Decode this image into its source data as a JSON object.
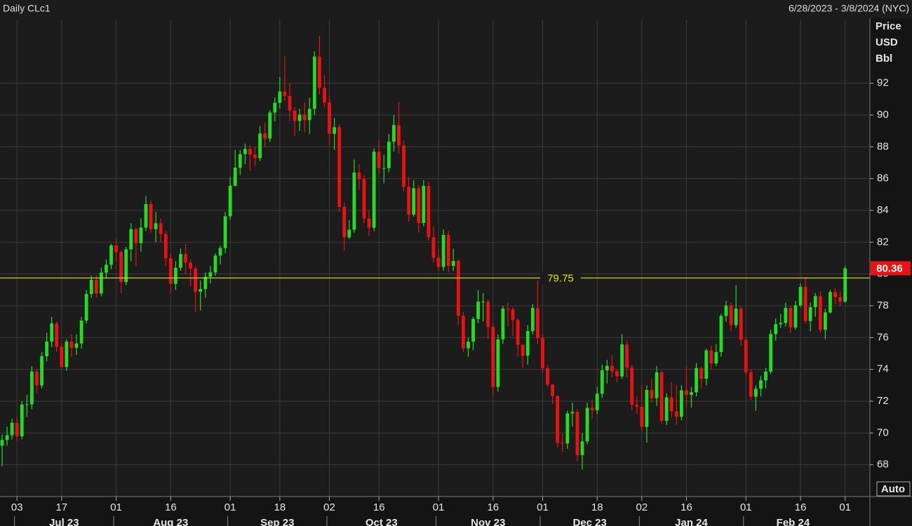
{
  "chart_data": {
    "type": "candlestick",
    "title": "Daily CLc1",
    "subtitle": "6/28/2023 - 3/8/2024 (NYC)",
    "y_axis_label": [
      "Price",
      "USD",
      "Bbl"
    ],
    "button": "Auto",
    "up_color": "#22dd22",
    "down_color": "#ee1111",
    "grid": true,
    "ylim": [
      66,
      96
    ],
    "yticks": [
      68,
      70,
      72,
      74,
      76,
      78,
      80,
      82,
      84,
      86,
      88,
      90,
      92
    ],
    "reference_line": {
      "value": 79.75,
      "color": "#e6e600"
    },
    "x": [
      "2023-06-28",
      "2023-06-29",
      "2023-06-30",
      "2023-07-03",
      "2023-07-05",
      "2023-07-06",
      "2023-07-07",
      "2023-07-10",
      "2023-07-11",
      "2023-07-12",
      "2023-07-13",
      "2023-07-14",
      "2023-07-17",
      "2023-07-18",
      "2023-07-19",
      "2023-07-20",
      "2023-07-21",
      "2023-07-24",
      "2023-07-25",
      "2023-07-26",
      "2023-07-27",
      "2023-07-28",
      "2023-07-31",
      "2023-08-01",
      "2023-08-02",
      "2023-08-03",
      "2023-08-04",
      "2023-08-07",
      "2023-08-08",
      "2023-08-09",
      "2023-08-10",
      "2023-08-11",
      "2023-08-14",
      "2023-08-15",
      "2023-08-16",
      "2023-08-17",
      "2023-08-18",
      "2023-08-21",
      "2023-08-22",
      "2023-08-23",
      "2023-08-24",
      "2023-08-25",
      "2023-08-28",
      "2023-08-29",
      "2023-08-30",
      "2023-08-31",
      "2023-09-01",
      "2023-09-05",
      "2023-09-06",
      "2023-09-07",
      "2023-09-08",
      "2023-09-11",
      "2023-09-12",
      "2023-09-13",
      "2023-09-14",
      "2023-09-15",
      "2023-09-18",
      "2023-09-19",
      "2023-09-20",
      "2023-09-21",
      "2023-09-22",
      "2023-09-25",
      "2023-09-26",
      "2023-09-27",
      "2023-09-28",
      "2023-09-29",
      "2023-10-02",
      "2023-10-03",
      "2023-10-04",
      "2023-10-05",
      "2023-10-06",
      "2023-10-09",
      "2023-10-10",
      "2023-10-11",
      "2023-10-12",
      "2023-10-13",
      "2023-10-16",
      "2023-10-17",
      "2023-10-18",
      "2023-10-19",
      "2023-10-20",
      "2023-10-23",
      "2023-10-24",
      "2023-10-25",
      "2023-10-26",
      "2023-10-27",
      "2023-10-30",
      "2023-10-31",
      "2023-11-01",
      "2023-11-02",
      "2023-11-03",
      "2023-11-06",
      "2023-11-07",
      "2023-11-08",
      "2023-11-09",
      "2023-11-10",
      "2023-11-13",
      "2023-11-14",
      "2023-11-15",
      "2023-11-16",
      "2023-11-17",
      "2023-11-20",
      "2023-11-21",
      "2023-11-22",
      "2023-11-24",
      "2023-11-27",
      "2023-11-28",
      "2023-11-29",
      "2023-11-30",
      "2023-12-01",
      "2023-12-04",
      "2023-12-05",
      "2023-12-06",
      "2023-12-07",
      "2023-12-08",
      "2023-12-11",
      "2023-12-12",
      "2023-12-13",
      "2023-12-14",
      "2023-12-15",
      "2023-12-18",
      "2023-12-19",
      "2023-12-20",
      "2023-12-21",
      "2023-12-22",
      "2023-12-26",
      "2023-12-27",
      "2023-12-28",
      "2023-12-29",
      "2024-01-02",
      "2024-01-03",
      "2024-01-04",
      "2024-01-05",
      "2024-01-08",
      "2024-01-09",
      "2024-01-10",
      "2024-01-11",
      "2024-01-12",
      "2024-01-16",
      "2024-01-17",
      "2024-01-18",
      "2024-01-19",
      "2024-01-22",
      "2024-01-23",
      "2024-01-24",
      "2024-01-25",
      "2024-01-26",
      "2024-01-29",
      "2024-01-30",
      "2024-01-31",
      "2024-02-01",
      "2024-02-02",
      "2024-02-05",
      "2024-02-06",
      "2024-02-07",
      "2024-02-08",
      "2024-02-09",
      "2024-02-12",
      "2024-02-13",
      "2024-02-14",
      "2024-02-15",
      "2024-02-16",
      "2024-02-20",
      "2024-02-21",
      "2024-02-22",
      "2024-02-23",
      "2024-02-26",
      "2024-02-27",
      "2024-02-28",
      "2024-02-29",
      "2024-03-01"
    ],
    "candles": [
      [
        69.2,
        69.9,
        67.9,
        69.56
      ],
      [
        69.56,
        70.4,
        69.2,
        69.86
      ],
      [
        69.86,
        70.9,
        69.6,
        70.64
      ],
      [
        70.64,
        71.0,
        69.5,
        69.79
      ],
      [
        69.79,
        72.0,
        69.6,
        71.79
      ],
      [
        71.79,
        72.4,
        71.0,
        71.8
      ],
      [
        71.8,
        74.2,
        71.5,
        73.86
      ],
      [
        73.86,
        74.0,
        72.5,
        72.99
      ],
      [
        72.99,
        75.1,
        72.8,
        74.83
      ],
      [
        74.83,
        76.3,
        74.5,
        75.75
      ],
      [
        75.75,
        77.3,
        75.4,
        76.89
      ],
      [
        76.89,
        77.0,
        75.1,
        75.42
      ],
      [
        75.42,
        75.6,
        74.0,
        74.15
      ],
      [
        74.15,
        75.9,
        73.9,
        75.75
      ],
      [
        75.75,
        76.2,
        74.8,
        75.35
      ],
      [
        75.35,
        76.2,
        74.9,
        75.63
      ],
      [
        75.63,
        77.3,
        75.3,
        77.07
      ],
      [
        77.07,
        79.0,
        76.9,
        78.74
      ],
      [
        78.74,
        79.9,
        78.5,
        79.63
      ],
      [
        79.63,
        79.9,
        78.5,
        78.78
      ],
      [
        78.78,
        80.4,
        78.6,
        80.09
      ],
      [
        80.09,
        80.9,
        79.7,
        80.58
      ],
      [
        80.58,
        81.9,
        80.3,
        81.8
      ],
      [
        81.8,
        82.2,
        80.8,
        81.37
      ],
      [
        81.37,
        81.5,
        78.8,
        79.49
      ],
      [
        79.49,
        81.7,
        79.3,
        81.55
      ],
      [
        81.55,
        83.2,
        80.8,
        82.82
      ],
      [
        82.82,
        82.9,
        80.5,
        81.94
      ],
      [
        81.94,
        83.5,
        81.4,
        82.92
      ],
      [
        82.92,
        84.9,
        82.7,
        84.4
      ],
      [
        84.4,
        84.6,
        82.6,
        82.82
      ],
      [
        82.82,
        83.9,
        82.0,
        83.19
      ],
      [
        83.19,
        83.5,
        82.0,
        82.51
      ],
      [
        82.51,
        82.7,
        80.5,
        80.99
      ],
      [
        80.99,
        81.3,
        78.8,
        79.38
      ],
      [
        79.38,
        80.8,
        79.0,
        80.39
      ],
      [
        80.39,
        81.6,
        80.2,
        81.25
      ],
      [
        81.25,
        81.9,
        80.0,
        80.72
      ],
      [
        80.72,
        80.9,
        79.2,
        80.35
      ],
      [
        80.35,
        80.5,
        77.6,
        78.89
      ],
      [
        78.89,
        79.6,
        77.7,
        79.05
      ],
      [
        79.05,
        80.1,
        78.5,
        79.83
      ],
      [
        79.83,
        80.5,
        79.4,
        80.1
      ],
      [
        80.1,
        81.3,
        79.9,
        81.16
      ],
      [
        81.16,
        81.8,
        80.6,
        81.63
      ],
      [
        81.63,
        83.9,
        81.3,
        83.63
      ],
      [
        83.63,
        86.1,
        83.4,
        85.55
      ],
      [
        85.55,
        87.8,
        85.5,
        86.69
      ],
      [
        86.69,
        87.8,
        86.2,
        87.54
      ],
      [
        87.54,
        88.2,
        86.9,
        87.87
      ],
      [
        87.87,
        88.1,
        86.5,
        87.51
      ],
      [
        87.51,
        88.0,
        86.8,
        87.29
      ],
      [
        87.29,
        89.3,
        87.1,
        88.84
      ],
      [
        88.84,
        89.5,
        88.0,
        88.52
      ],
      [
        88.52,
        90.3,
        88.3,
        90.16
      ],
      [
        90.16,
        91.1,
        89.6,
        90.77
      ],
      [
        90.77,
        92.4,
        90.4,
        91.48
      ],
      [
        91.48,
        93.7,
        90.9,
        91.2
      ],
      [
        91.2,
        92.0,
        89.6,
        90.28
      ],
      [
        90.28,
        90.5,
        88.7,
        89.63
      ],
      [
        89.63,
        90.4,
        89.0,
        90.03
      ],
      [
        90.03,
        90.8,
        88.9,
        89.68
      ],
      [
        89.68,
        91.1,
        88.8,
        90.39
      ],
      [
        90.39,
        94.0,
        90.0,
        93.68
      ],
      [
        93.68,
        95.0,
        91.3,
        91.71
      ],
      [
        91.71,
        92.5,
        90.5,
        90.79
      ],
      [
        90.79,
        91.2,
        88.1,
        88.82
      ],
      [
        88.82,
        89.8,
        87.8,
        89.23
      ],
      [
        89.23,
        89.4,
        83.9,
        84.22
      ],
      [
        84.22,
        84.5,
        81.5,
        82.31
      ],
      [
        82.31,
        83.4,
        82.2,
        82.79
      ],
      [
        82.79,
        87.2,
        82.6,
        86.38
      ],
      [
        86.38,
        86.9,
        85.3,
        85.97
      ],
      [
        85.97,
        86.2,
        83.2,
        83.49
      ],
      [
        83.49,
        84.0,
        82.4,
        82.91
      ],
      [
        82.91,
        87.9,
        82.7,
        87.69
      ],
      [
        87.69,
        88.4,
        86.3,
        86.66
      ],
      [
        86.66,
        87.5,
        85.7,
        86.66
      ],
      [
        86.66,
        88.8,
        86.4,
        88.32
      ],
      [
        88.32,
        90.0,
        87.7,
        89.37
      ],
      [
        89.37,
        90.8,
        87.6,
        88.08
      ],
      [
        88.08,
        88.4,
        85.2,
        85.49
      ],
      [
        85.49,
        86.1,
        83.3,
        83.74
      ],
      [
        83.74,
        85.9,
        83.6,
        85.39
      ],
      [
        85.39,
        85.6,
        82.6,
        83.21
      ],
      [
        83.21,
        85.9,
        83.0,
        85.54
      ],
      [
        85.54,
        85.8,
        82.1,
        82.31
      ],
      [
        82.31,
        83.0,
        80.7,
        81.02
      ],
      [
        81.02,
        81.6,
        80.2,
        80.44
      ],
      [
        80.44,
        82.8,
        80.2,
        82.46
      ],
      [
        82.46,
        82.7,
        80.1,
        80.51
      ],
      [
        80.51,
        81.6,
        80.2,
        80.82
      ],
      [
        80.82,
        80.9,
        76.8,
        77.37
      ],
      [
        77.37,
        77.6,
        75.1,
        75.33
      ],
      [
        75.33,
        76.0,
        74.8,
        75.74
      ],
      [
        75.74,
        77.3,
        75.2,
        77.17
      ],
      [
        77.17,
        79.0,
        76.9,
        78.26
      ],
      [
        78.26,
        78.8,
        77.0,
        78.26
      ],
      [
        78.26,
        78.4,
        75.9,
        76.66
      ],
      [
        76.66,
        76.9,
        72.4,
        72.9
      ],
      [
        72.9,
        76.2,
        72.6,
        75.89
      ],
      [
        75.89,
        78.0,
        75.6,
        77.83
      ],
      [
        77.83,
        78.2,
        76.7,
        77.77
      ],
      [
        77.77,
        77.9,
        76.1,
        77.1
      ],
      [
        77.1,
        77.2,
        74.8,
        75.54
      ],
      [
        75.54,
        75.6,
        74.1,
        74.86
      ],
      [
        74.86,
        76.8,
        74.3,
        76.41
      ],
      [
        76.41,
        78.1,
        76.2,
        77.86
      ],
      [
        77.86,
        79.6,
        75.6,
        75.96
      ],
      [
        75.96,
        76.2,
        73.8,
        74.07
      ],
      [
        74.07,
        74.3,
        72.9,
        73.04
      ],
      [
        73.04,
        73.1,
        71.8,
        72.32
      ],
      [
        72.32,
        72.4,
        69.1,
        69.38
      ],
      [
        69.38,
        70.0,
        68.8,
        69.34
      ],
      [
        69.34,
        71.4,
        69.0,
        71.23
      ],
      [
        71.23,
        71.9,
        70.4,
        71.32
      ],
      [
        71.32,
        71.5,
        68.2,
        68.61
      ],
      [
        68.61,
        70.0,
        67.7,
        69.47
      ],
      [
        69.47,
        71.9,
        69.3,
        71.58
      ],
      [
        71.58,
        72.1,
        70.9,
        71.43
      ],
      [
        71.43,
        72.9,
        71.2,
        72.47
      ],
      [
        72.47,
        74.3,
        72.2,
        73.94
      ],
      [
        73.94,
        74.6,
        73.1,
        74.22
      ],
      [
        74.22,
        74.9,
        73.5,
        73.89
      ],
      [
        73.89,
        74.0,
        73.2,
        73.56
      ],
      [
        73.56,
        76.2,
        73.4,
        75.57
      ],
      [
        75.57,
        75.8,
        73.5,
        74.11
      ],
      [
        74.11,
        74.3,
        71.4,
        71.77
      ],
      [
        71.77,
        72.3,
        71.2,
        71.65
      ],
      [
        71.65,
        73.0,
        70.1,
        70.38
      ],
      [
        70.38,
        73.0,
        69.4,
        72.7
      ],
      [
        72.7,
        73.4,
        71.9,
        72.19
      ],
      [
        72.19,
        74.2,
        71.7,
        73.81
      ],
      [
        73.81,
        73.9,
        70.6,
        70.77
      ],
      [
        70.77,
        72.5,
        70.5,
        72.24
      ],
      [
        72.24,
        73.2,
        71.0,
        71.37
      ],
      [
        71.37,
        73.0,
        70.5,
        71.02
      ],
      [
        71.02,
        73.0,
        70.8,
        72.68
      ],
      [
        72.68,
        74.2,
        71.6,
        72.4
      ],
      [
        72.4,
        72.9,
        71.6,
        72.56
      ],
      [
        72.56,
        74.4,
        72.3,
        74.08
      ],
      [
        74.08,
        74.2,
        72.8,
        73.41
      ],
      [
        73.41,
        75.3,
        73.0,
        75.19
      ],
      [
        75.19,
        75.5,
        74.0,
        74.37
      ],
      [
        74.37,
        75.6,
        74.2,
        75.09
      ],
      [
        75.09,
        77.5,
        74.8,
        77.36
      ],
      [
        77.36,
        78.3,
        77.0,
        78.01
      ],
      [
        78.01,
        78.2,
        76.4,
        76.78
      ],
      [
        76.78,
        79.3,
        76.6,
        77.82
      ],
      [
        77.82,
        78.0,
        75.5,
        75.85
      ],
      [
        75.85,
        76.0,
        73.6,
        73.82
      ],
      [
        73.82,
        74.0,
        72.1,
        72.28
      ],
      [
        72.28,
        73.0,
        71.4,
        72.78
      ],
      [
        72.78,
        73.6,
        72.3,
        73.31
      ],
      [
        73.31,
        74.1,
        72.8,
        73.86
      ],
      [
        73.86,
        76.5,
        73.7,
        76.22
      ],
      [
        76.22,
        77.2,
        75.8,
        76.84
      ],
      [
        76.84,
        77.5,
        76.6,
        76.92
      ],
      [
        76.92,
        78.2,
        76.7,
        77.87
      ],
      [
        77.87,
        78.0,
        76.3,
        76.64
      ],
      [
        76.64,
        78.3,
        76.5,
        78.03
      ],
      [
        78.03,
        79.4,
        77.9,
        79.19
      ],
      [
        79.19,
        79.8,
        76.9,
        77.04
      ],
      [
        77.04,
        78.2,
        76.4,
        77.91
      ],
      [
        77.91,
        78.8,
        77.3,
        78.61
      ],
      [
        78.61,
        78.9,
        76.3,
        76.49
      ],
      [
        76.49,
        77.8,
        75.9,
        77.58
      ],
      [
        77.58,
        79.0,
        77.5,
        78.87
      ],
      [
        78.87,
        79.1,
        78.1,
        78.54
      ],
      [
        78.54,
        78.9,
        78.0,
        78.26
      ],
      [
        78.26,
        80.5,
        78.2,
        80.36
      ]
    ],
    "xticks": [
      {
        "value": "2023-07-03",
        "label": "03"
      },
      {
        "value": "2023-07-17",
        "label": "17"
      },
      {
        "value": "2023-08-01",
        "label": "01"
      },
      {
        "value": "2023-08-16",
        "label": "16"
      },
      {
        "value": "2023-09-01",
        "label": "01"
      },
      {
        "value": "2023-09-18",
        "label": "18"
      },
      {
        "value": "2023-10-02",
        "label": "02"
      },
      {
        "value": "2023-10-16",
        "label": "16"
      },
      {
        "value": "2023-11-01",
        "label": "01"
      },
      {
        "value": "2023-11-16",
        "label": "16"
      },
      {
        "value": "2023-12-01",
        "label": "01"
      },
      {
        "value": "2023-12-18",
        "label": "18"
      },
      {
        "value": "2024-01-02",
        "label": "02"
      },
      {
        "value": "2024-01-16",
        "label": "16"
      },
      {
        "value": "2024-02-01",
        "label": "01"
      },
      {
        "value": "2024-02-16",
        "label": "16"
      },
      {
        "value": "2024-03-01",
        "label": "01"
      }
    ],
    "month_labels": [
      {
        "value": "2023-07",
        "label": "Jul 23"
      },
      {
        "value": "2023-08",
        "label": "Aug 23"
      },
      {
        "value": "2023-09",
        "label": "Sep 23"
      },
      {
        "value": "2023-10",
        "label": "Oct 23"
      },
      {
        "value": "2023-11",
        "label": "Nov 23"
      },
      {
        "value": "2023-12",
        "label": "Dec 23"
      },
      {
        "value": "2024-01",
        "label": "Jan 24"
      },
      {
        "value": "2024-02",
        "label": "Feb 24"
      }
    ]
  }
}
